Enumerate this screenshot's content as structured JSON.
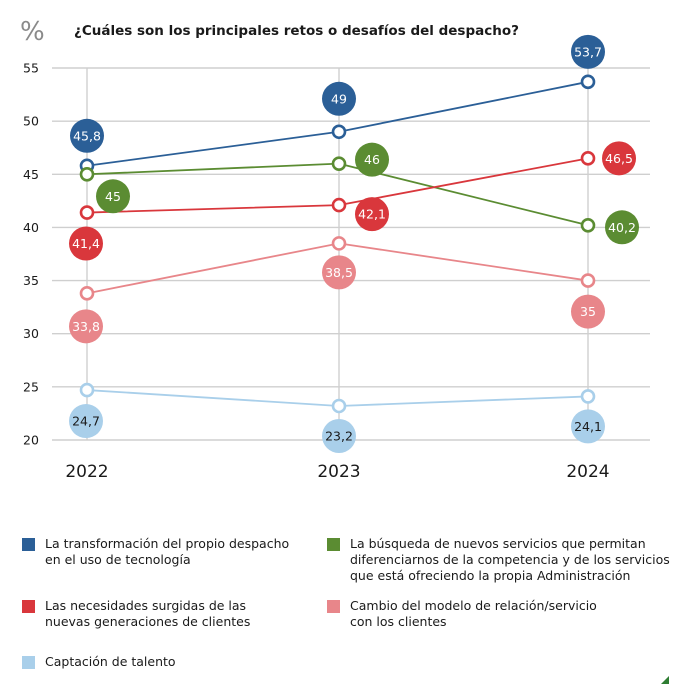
{
  "chart_data": {
    "type": "line",
    "unit_symbol": "%",
    "title": "¿Cuáles son los principales retos o desafíos del despacho?",
    "xlabel": "",
    "ylabel": "%",
    "categories": [
      "2022",
      "2023",
      "2024"
    ],
    "y_ticks": [
      "55",
      "50",
      "45",
      "40",
      "35",
      "30",
      "25",
      "20"
    ],
    "ylim": [
      20,
      55
    ],
    "grid": true,
    "legend_position": "bottom",
    "series": [
      {
        "name": "La transformación del propio despacho en el uso de tecnología",
        "color": "#2b5f97",
        "values": [
          45.8,
          49,
          53.7
        ],
        "labels": [
          "45,8",
          "49",
          "53,7"
        ]
      },
      {
        "name": "La búsqueda de nuevos servicios que permitan diferenciarnos de la competencia y de los servicios que está ofreciendo la propia Administración",
        "color": "#5b8c32",
        "values": [
          45,
          46,
          40.2
        ],
        "labels": [
          "45",
          "46",
          "40,2"
        ]
      },
      {
        "name": "Las necesidades surgidas de las nuevas generaciones de clientes",
        "color": "#d9373c",
        "values": [
          41.4,
          42.1,
          46.5
        ],
        "labels": [
          "41,4",
          "42,1",
          "46,5"
        ]
      },
      {
        "name": "Cambio del modelo de relación/servicio con los clientes",
        "color": "#e8868a",
        "values": [
          33.8,
          38.5,
          35
        ],
        "labels": [
          "33,8",
          "38,5",
          "35"
        ]
      },
      {
        "name": "Captación de talento",
        "color": "#a9cfea",
        "values": [
          24.7,
          23.2,
          24.1
        ],
        "labels": [
          "24,7",
          "23,2",
          "24,1"
        ]
      }
    ]
  },
  "legend": {
    "items": [
      {
        "label_lines": [
          "La transformación del propio despacho",
          "en el uso de tecnología"
        ],
        "color": "#2b5f97"
      },
      {
        "label_lines": [
          "La búsqueda de nuevos servicios que permitan",
          "diferenciarnos de la competencia y de los servicios",
          "que está ofreciendo la propia Administración"
        ],
        "color": "#5b8c32"
      },
      {
        "label_lines": [
          "Las necesidades surgidas de las",
          "nuevas generaciones de clientes"
        ],
        "color": "#d9373c"
      },
      {
        "label_lines": [
          "Cambio del modelo de relación/servicio",
          "con los clientes"
        ],
        "color": "#e8868a"
      },
      {
        "label_lines": [
          "Captación de talento"
        ],
        "color": "#a9cfea"
      }
    ]
  }
}
